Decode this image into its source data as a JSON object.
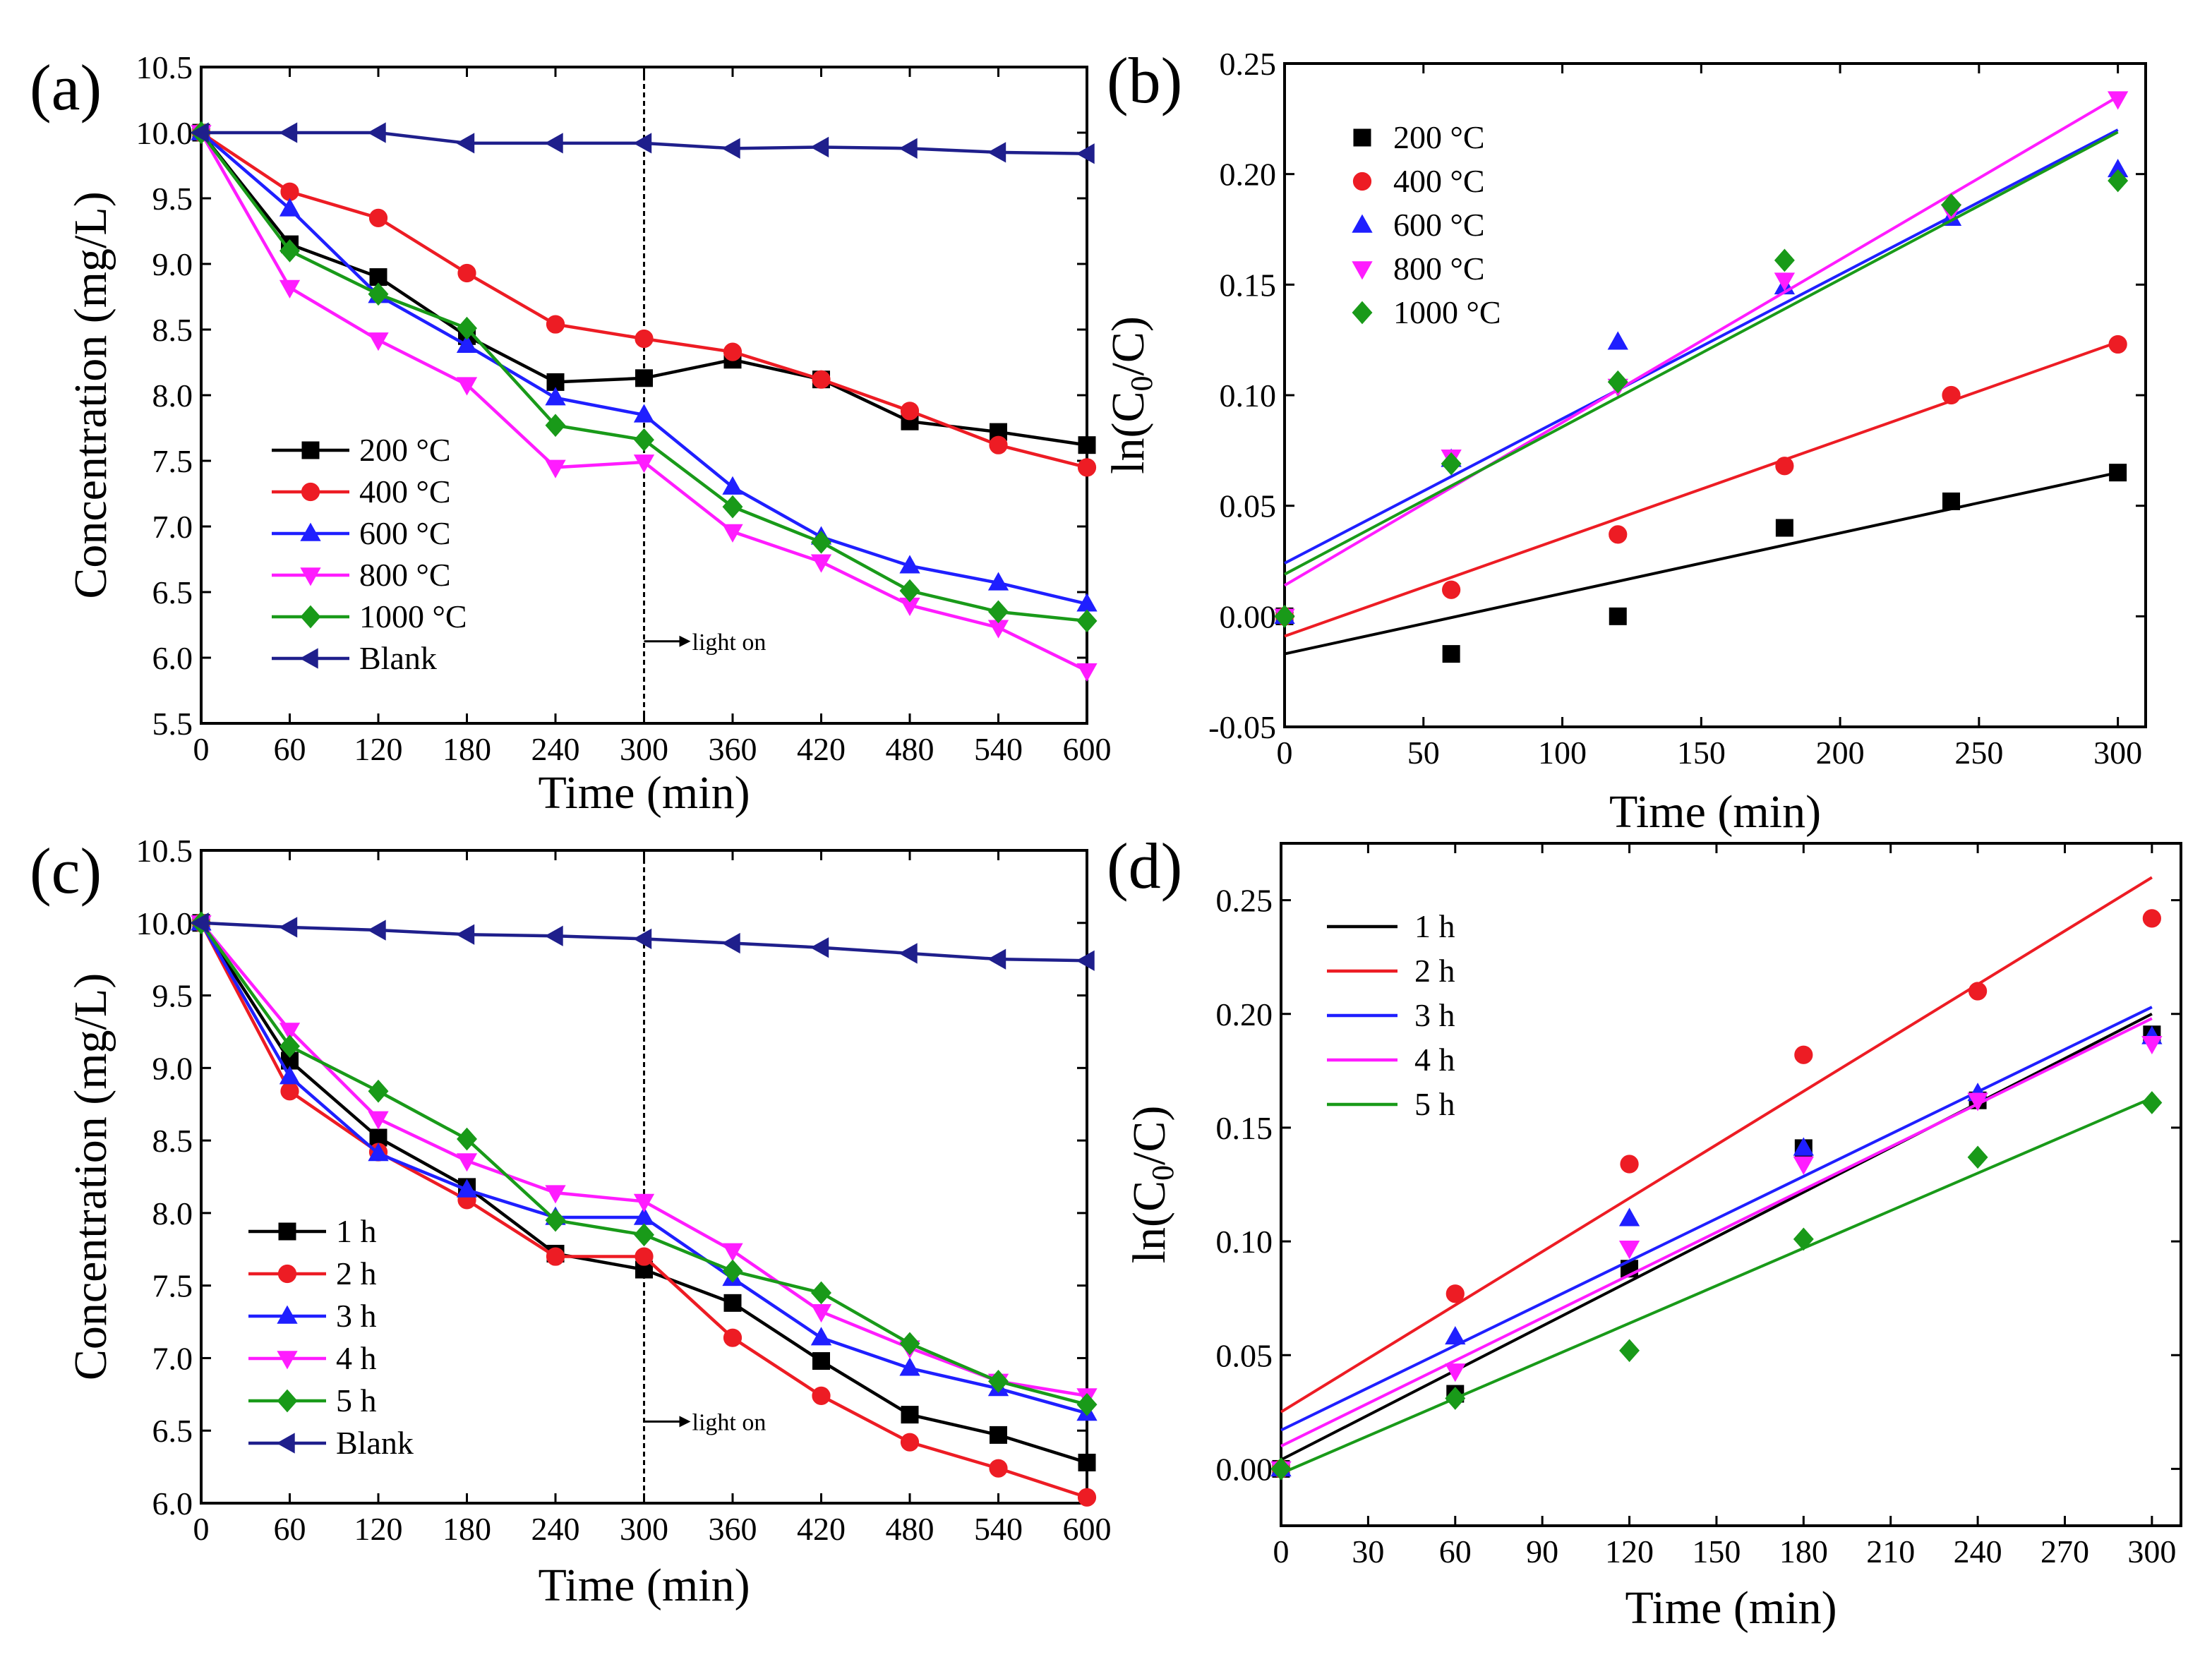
{
  "chart_data": [
    {
      "panel": "(a)",
      "type": "line",
      "xlabel": "Time (min)",
      "ylabel": "Concentration (mg/L)",
      "xlim": [
        0,
        600
      ],
      "ylim": [
        5.5,
        10.5
      ],
      "xticks": [
        0,
        60,
        120,
        180,
        240,
        300,
        360,
        420,
        480,
        540,
        600
      ],
      "yticks": [
        5.5,
        6.0,
        6.5,
        7.0,
        7.5,
        8.0,
        8.5,
        9.0,
        9.5,
        10.0,
        10.5
      ],
      "xtick_labels": [
        "0",
        "60",
        "120",
        "180",
        "240",
        "300",
        "360",
        "420",
        "480",
        "540",
        "600"
      ],
      "ytick_labels": [
        "5.5",
        "6.0",
        "6.5",
        "7.0",
        "7.5",
        "8.0",
        "8.5",
        "9.0",
        "9.5",
        "10.0",
        "10.5"
      ],
      "legend_position": "bottom-left",
      "annotation": {
        "text": "light on",
        "x": 300
      },
      "x": [
        0,
        60,
        120,
        180,
        240,
        300,
        360,
        420,
        480,
        540,
        600
      ],
      "series": [
        {
          "name": "200 °C",
          "color": "#000000",
          "marker": "square",
          "values": [
            10.0,
            9.15,
            8.9,
            8.45,
            8.1,
            8.13,
            8.27,
            8.12,
            7.8,
            7.72,
            7.62
          ]
        },
        {
          "name": "400 °C",
          "color": "#ed1c24",
          "marker": "circle",
          "values": [
            10.0,
            9.55,
            9.35,
            8.93,
            8.54,
            8.43,
            8.33,
            8.12,
            7.88,
            7.62,
            7.45
          ]
        },
        {
          "name": "600 °C",
          "color": "#1f1fff",
          "marker": "triangle-up",
          "values": [
            10.0,
            9.42,
            8.76,
            8.38,
            7.98,
            7.85,
            7.3,
            6.92,
            6.7,
            6.57,
            6.41
          ]
        },
        {
          "name": "800 °C",
          "color": "#ff1cff",
          "marker": "triangle-down",
          "values": [
            10.0,
            8.82,
            8.42,
            8.08,
            7.45,
            7.49,
            6.96,
            6.73,
            6.4,
            6.23,
            5.9
          ]
        },
        {
          "name": "1000 °C",
          "color": "#199a19",
          "marker": "diamond",
          "values": [
            10.0,
            9.1,
            8.77,
            8.51,
            7.77,
            7.66,
            7.15,
            6.88,
            6.51,
            6.35,
            6.28
          ]
        },
        {
          "name": "Blank",
          "color": "#1f1f8c",
          "marker": "triangle-left",
          "values": [
            10.0,
            10.0,
            10.0,
            9.92,
            9.92,
            9.92,
            9.88,
            9.89,
            9.88,
            9.85,
            9.84
          ]
        }
      ]
    },
    {
      "panel": "(b)",
      "type": "scatter",
      "xlabel": "Time (min)",
      "ylabel": "ln(C0/C)",
      "ylabel_parts": {
        "pre": "ln(C",
        "sub": "0",
        "post": "/C)"
      },
      "xlim": [
        0,
        310
      ],
      "ylim": [
        -0.05,
        0.25
      ],
      "xticks": [
        0,
        50,
        100,
        150,
        200,
        250,
        300
      ],
      "yticks": [
        -0.05,
        0.0,
        0.05,
        0.1,
        0.15,
        0.2,
        0.25
      ],
      "xtick_labels": [
        "0",
        "50",
        "100",
        "150",
        "200",
        "250",
        "300"
      ],
      "ytick_labels": [
        "-0.05",
        "0.00",
        "0.05",
        "0.10",
        "0.15",
        "0.20",
        "0.25"
      ],
      "legend_position": "top-left",
      "x": [
        0,
        60,
        120,
        180,
        240,
        300
      ],
      "series": [
        {
          "name": "200 °C",
          "color": "#000000",
          "marker": "square",
          "values": [
            0.0,
            -0.017,
            0.0,
            0.04,
            0.052,
            0.065
          ],
          "fit": [
            -0.017,
            0.065
          ]
        },
        {
          "name": "400 °C",
          "color": "#ed1c24",
          "marker": "circle",
          "values": [
            0.0,
            0.012,
            0.037,
            0.068,
            0.1,
            0.123
          ],
          "fit": [
            -0.009,
            0.124
          ]
        },
        {
          "name": "600 °C",
          "color": "#1f1fff",
          "marker": "triangle-up",
          "values": [
            0.0,
            0.071,
            0.124,
            0.149,
            0.18,
            0.202
          ],
          "fit": [
            0.024,
            0.22
          ]
        },
        {
          "name": "800 °C",
          "color": "#ff1cff",
          "marker": "triangle-down",
          "values": [
            0.0,
            0.072,
            0.104,
            0.152,
            0.183,
            0.234
          ],
          "fit": [
            0.014,
            0.235
          ]
        },
        {
          "name": "1000 °C",
          "color": "#199a19",
          "marker": "diamond",
          "values": [
            0.0,
            0.069,
            0.106,
            0.161,
            0.186,
            0.197
          ],
          "fit": [
            0.019,
            0.219
          ]
        }
      ]
    },
    {
      "panel": "(c)",
      "type": "line",
      "xlabel": "Time (min)",
      "ylabel": "Concentration (mg/L)",
      "xlim": [
        0,
        600
      ],
      "ylim": [
        6.0,
        10.5
      ],
      "xticks": [
        0,
        60,
        120,
        180,
        240,
        300,
        360,
        420,
        480,
        540,
        600
      ],
      "yticks": [
        6.0,
        6.5,
        7.0,
        7.5,
        8.0,
        8.5,
        9.0,
        9.5,
        10.0,
        10.5
      ],
      "xtick_labels": [
        "0",
        "60",
        "120",
        "180",
        "240",
        "300",
        "360",
        "420",
        "480",
        "540",
        "600"
      ],
      "ytick_labels": [
        "6.0",
        "6.5",
        "7.0",
        "7.5",
        "8.0",
        "8.5",
        "9.0",
        "9.5",
        "10.0",
        "10.5"
      ],
      "legend_position": "bottom-left",
      "annotation": {
        "text": "light on",
        "x": 300
      },
      "x": [
        0,
        60,
        120,
        180,
        240,
        300,
        360,
        420,
        480,
        540,
        600
      ],
      "series": [
        {
          "name": "1 h",
          "color": "#000000",
          "marker": "square",
          "values": [
            10.0,
            9.05,
            8.52,
            8.18,
            7.72,
            7.61,
            7.38,
            6.98,
            6.61,
            6.47,
            6.28
          ]
        },
        {
          "name": "2 h",
          "color": "#ed1c24",
          "marker": "circle",
          "values": [
            10.0,
            8.84,
            8.42,
            8.09,
            7.7,
            7.7,
            7.14,
            6.74,
            6.42,
            6.24,
            6.04
          ]
        },
        {
          "name": "3 h",
          "color": "#1f1fff",
          "marker": "triangle-up",
          "values": [
            10.0,
            8.94,
            8.41,
            8.16,
            7.97,
            7.97,
            7.55,
            7.14,
            6.93,
            6.79,
            6.62
          ]
        },
        {
          "name": "4 h",
          "color": "#ff1cff",
          "marker": "triangle-down",
          "values": [
            10.0,
            9.26,
            8.65,
            8.36,
            8.14,
            8.08,
            7.74,
            7.32,
            7.07,
            6.84,
            6.74
          ]
        },
        {
          "name": "5 h",
          "color": "#199a19",
          "marker": "diamond",
          "values": [
            10.0,
            9.15,
            8.84,
            8.51,
            7.95,
            7.85,
            7.6,
            7.45,
            7.1,
            6.84,
            6.68
          ]
        },
        {
          "name": "Blank",
          "color": "#1f1f8c",
          "marker": "triangle-left",
          "values": [
            10.0,
            9.97,
            9.95,
            9.92,
            9.91,
            9.89,
            9.86,
            9.83,
            9.79,
            9.75,
            9.74
          ]
        }
      ]
    },
    {
      "panel": "(d)",
      "type": "scatter",
      "xlabel": "Time (min)",
      "ylabel": "ln(C0/C)",
      "ylabel_parts": {
        "pre": "ln(C",
        "sub": "0",
        "post": "/C)"
      },
      "xlim": [
        0,
        310
      ],
      "ylim": [
        -0.025,
        0.275
      ],
      "xticks": [
        0,
        30,
        60,
        90,
        120,
        150,
        180,
        210,
        240,
        270,
        300
      ],
      "yticks": [
        0.0,
        0.05,
        0.1,
        0.15,
        0.2,
        0.25
      ],
      "xtick_labels": [
        "0",
        "30",
        "60",
        "90",
        "120",
        "150",
        "180",
        "210",
        "240",
        "270",
        "300"
      ],
      "ytick_labels": [
        "0.00",
        "0.05",
        "0.10",
        "0.15",
        "0.20",
        "0.25"
      ],
      "legend_position": "top-left",
      "legend_style": "line",
      "x": [
        0,
        60,
        120,
        180,
        240,
        300
      ],
      "series": [
        {
          "name": "1 h",
          "color": "#000000",
          "marker": "square",
          "values": [
            0.0,
            0.033,
            0.088,
            0.141,
            0.162,
            0.191
          ],
          "fit": [
            0.004,
            0.2
          ]
        },
        {
          "name": "2 h",
          "color": "#ed1c24",
          "marker": "circle",
          "values": [
            0.0,
            0.077,
            0.134,
            0.182,
            0.21,
            0.242
          ],
          "fit": [
            0.025,
            0.26
          ]
        },
        {
          "name": "3 h",
          "color": "#1f1fff",
          "marker": "triangle-up",
          "values": [
            0.0,
            0.058,
            0.11,
            0.141,
            0.165,
            0.19
          ],
          "fit": [
            0.017,
            0.203
          ]
        },
        {
          "name": "4 h",
          "color": "#ff1cff",
          "marker": "triangle-down",
          "values": [
            0.0,
            0.043,
            0.097,
            0.134,
            0.162,
            0.187
          ],
          "fit": [
            0.01,
            0.198
          ]
        },
        {
          "name": "5 h",
          "color": "#199a19",
          "marker": "diamond",
          "values": [
            0.0,
            0.031,
            0.052,
            0.101,
            0.137,
            0.161
          ],
          "fit": [
            -0.002,
            0.163
          ]
        }
      ]
    }
  ]
}
